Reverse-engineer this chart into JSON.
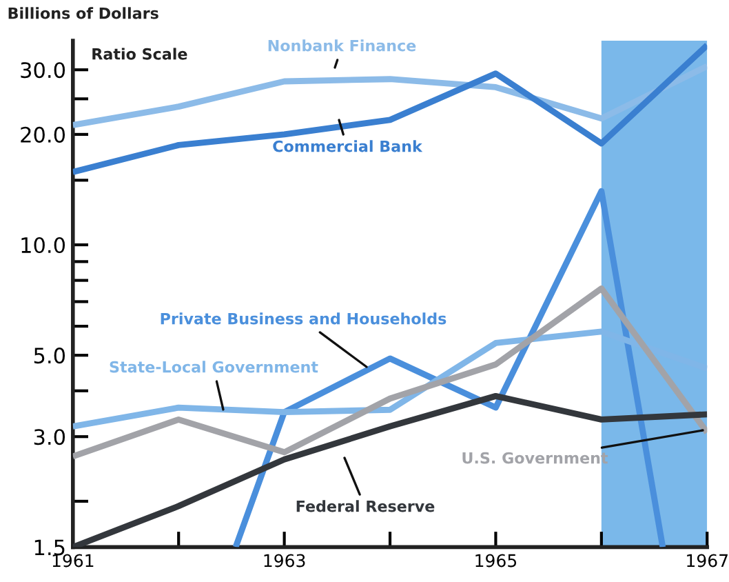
{
  "chart_data": {
    "type": "line",
    "ylabel": "Billions of Dollars",
    "annotations": [
      "Ratio Scale"
    ],
    "x": [
      1961,
      1962,
      1963,
      1964,
      1965,
      1966,
      1967
    ],
    "series": [
      {
        "name": "Nonbank Finance",
        "color": "#8cbbe8",
        "values": [
          21.2,
          23.8,
          27.9,
          28.3,
          26.9,
          22.1,
          30.7
        ]
      },
      {
        "name": "Commercial Bank",
        "color": "#3a7fd0",
        "values": [
          15.8,
          18.7,
          20.0,
          21.9,
          29.3,
          18.9,
          35
        ]
      },
      {
        "name": "Private Business and Households",
        "color": "#4a8fdc",
        "x": [
          1962.54,
          1963,
          1964,
          1965,
          1966,
          1966.58
        ],
        "values": [
          1.5,
          3.5,
          4.9,
          3.6,
          14.0,
          1.5
        ]
      },
      {
        "name": "State-Local Government",
        "color": "#80b6e8",
        "values": [
          3.2,
          3.6,
          3.5,
          3.55,
          5.4,
          5.8,
          4.6
        ]
      },
      {
        "name": "U.S. Government",
        "color": "#a2a3a8",
        "values": [
          2.65,
          3.34,
          2.72,
          3.81,
          4.72,
          7.6,
          3.08
        ]
      },
      {
        "name": "Federal Reserve",
        "color": "#33373c",
        "values": [
          1.5,
          1.94,
          2.6,
          3.2,
          3.87,
          3.34,
          3.45
        ]
      }
    ],
    "log": true,
    "xlim": [
      1961,
      1967
    ],
    "xticks": [
      1961,
      {
        "value": 1962,
        "label": null
      },
      1963,
      {
        "value": 1964,
        "label": null
      },
      1965,
      {
        "value": 1966,
        "label": null
      },
      1967
    ],
    "ylim": [
      1.5,
      36
    ],
    "yticks": [
      1.5,
      {
        "value": 2,
        "label": null
      },
      {
        "value": 3,
        "label": "3.0"
      },
      {
        "value": 4,
        "label": null
      },
      {
        "value": 5,
        "label": "5.0"
      },
      {
        "value": 6,
        "label": null
      },
      {
        "value": 7,
        "label": null
      },
      {
        "value": 8,
        "label": null
      },
      {
        "value": 9,
        "label": null
      },
      {
        "value": 10,
        "label": "10.0"
      },
      {
        "value": 15,
        "label": null
      },
      {
        "value": 20,
        "label": "20.0"
      },
      {
        "value": 25,
        "label": null
      },
      {
        "value": 30,
        "label": "30.0"
      }
    ],
    "bands": [
      {
        "axis": "x",
        "from": 1966,
        "to": 1967,
        "color": "#7ab8ea"
      }
    ],
    "grid": false,
    "legend": false,
    "marker": "none",
    "line_style": "solid"
  }
}
